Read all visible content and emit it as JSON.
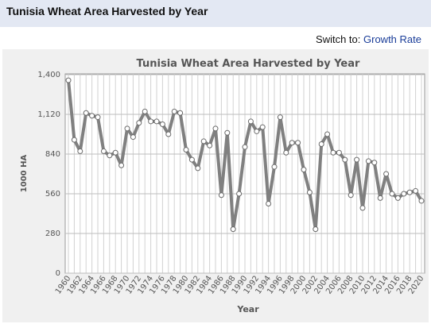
{
  "header": {
    "title": "Tunisia Wheat Area Harvested by Year"
  },
  "switch": {
    "label": "Switch to:",
    "link": "Growth Rate"
  },
  "colors": {
    "header_bg": "#e3e8f3",
    "link": "#1a3d99",
    "line": "#808080",
    "marker_fill": "#ffffff",
    "plot_bg": "#ffffff",
    "panel_bg": "#f0f0f0"
  },
  "chart_data": {
    "type": "line",
    "title": "Tunisia Wheat Area Harvested by Year",
    "xlabel": "Year",
    "ylabel": "1000 HA",
    "ylim": [
      0,
      1400
    ],
    "yticks": [
      "0",
      "280",
      "560",
      "840",
      "1,120",
      "1,400"
    ],
    "xticks": [
      "1960",
      "1962",
      "1964",
      "1966",
      "1968",
      "1970",
      "1972",
      "1974",
      "1976",
      "1978",
      "1980",
      "1982",
      "1984",
      "1986",
      "1988",
      "1990",
      "1992",
      "1994",
      "1996",
      "1998",
      "2000",
      "2002",
      "2004",
      "2006",
      "2008",
      "2010",
      "2012",
      "2014",
      "2016",
      "2018",
      "2020"
    ],
    "grid": true,
    "legend": "none",
    "series": [
      {
        "x": [
          1960,
          1961,
          1962,
          1963,
          1964,
          1965,
          1966,
          1967,
          1968,
          1969,
          1970,
          1971,
          1972,
          1973,
          1974,
          1975,
          1976,
          1977,
          1978,
          1979,
          1980,
          1981,
          1982,
          1983,
          1984,
          1985,
          1986,
          1987,
          1988,
          1989,
          1990,
          1991,
          1992,
          1993,
          1994,
          1995,
          1996,
          1997,
          1998,
          1999,
          2000,
          2001,
          2002,
          2003,
          2004,
          2005,
          2006,
          2007,
          2008,
          2009,
          2010,
          2011,
          2012,
          2013,
          2014,
          2015,
          2016,
          2017,
          2018,
          2019,
          2020
        ],
        "values": [
          1360,
          940,
          860,
          1130,
          1110,
          1100,
          860,
          830,
          850,
          760,
          1020,
          960,
          1060,
          1140,
          1070,
          1070,
          1050,
          980,
          1140,
          1130,
          870,
          800,
          740,
          930,
          900,
          1020,
          550,
          990,
          310,
          560,
          890,
          1070,
          1000,
          1030,
          490,
          750,
          1100,
          850,
          920,
          920,
          730,
          570,
          310,
          910,
          980,
          850,
          850,
          800,
          550,
          800,
          460,
          790,
          780,
          530,
          700,
          560,
          530,
          560,
          570,
          580,
          510
        ]
      }
    ]
  }
}
